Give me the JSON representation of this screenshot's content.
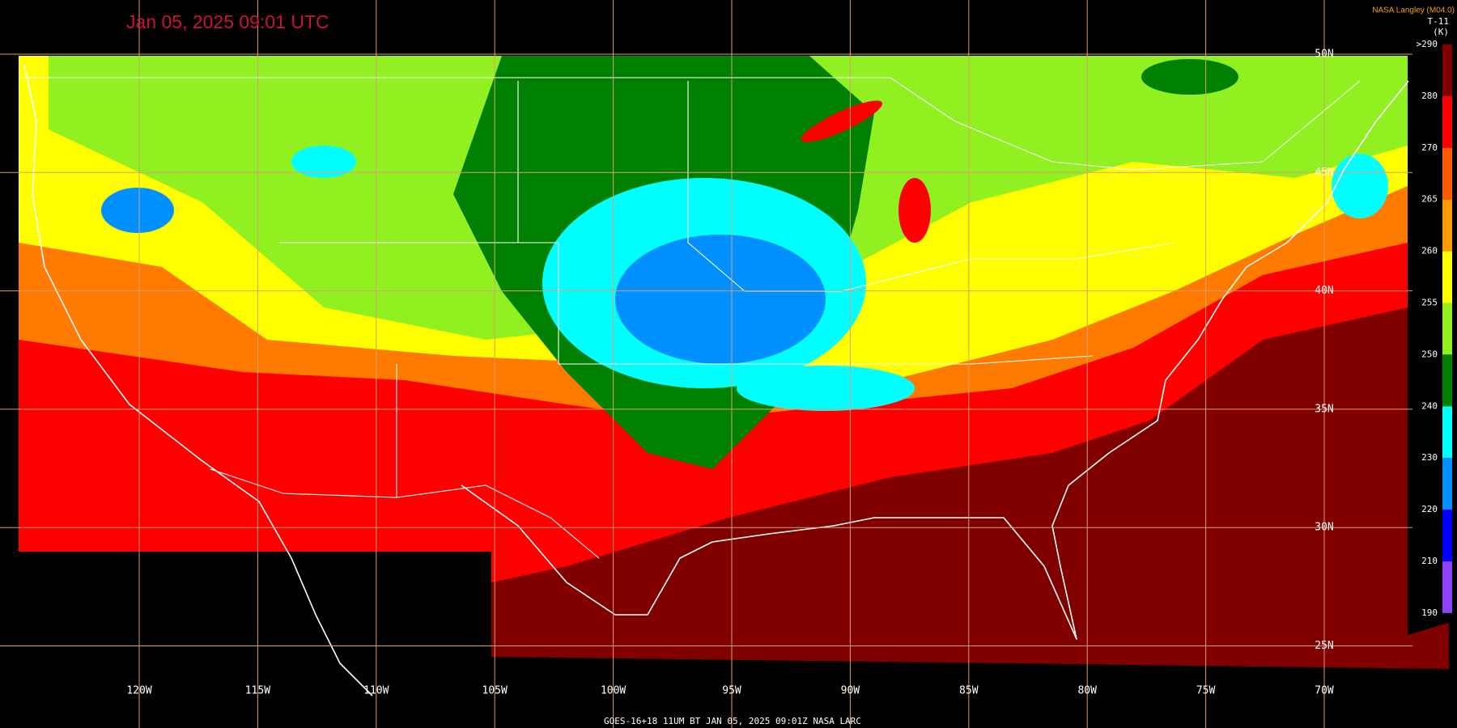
{
  "header": {
    "title": "Jan 05, 2025 09:01 UTC",
    "credit": "NASA Langley (M04.0)",
    "product": "T-11",
    "unit": "(K)"
  },
  "legend": {
    "labels": [
      ">290",
      "280",
      "270",
      "265",
      "260",
      "255",
      "250",
      "240",
      "230",
      "220",
      "210",
      "190"
    ],
    "colors": [
      "#800000",
      "#ff0000",
      "#ff5a00",
      "#ff9a00",
      "#ffff00",
      "#90f020",
      "#008000",
      "#00ffff",
      "#0090ff",
      "#0000ff",
      "#9040ff"
    ]
  },
  "longitude_labels": [
    "120W",
    "115W",
    "110W",
    "105W",
    "100W",
    "95W",
    "90W",
    "85W",
    "80W",
    "75W",
    "70W"
  ],
  "latitude_labels": [
    "50N",
    "45N",
    "40N",
    "35N",
    "30N",
    "25N"
  ],
  "footer": "GOES-16+18  11UM BT  JAN 05, 2025 09:01Z  NASA LARC"
}
